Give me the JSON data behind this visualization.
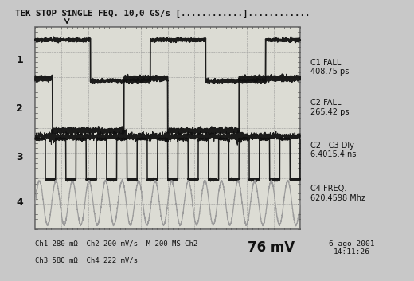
{
  "title": "TEK STOP SINGLE FEQ. 10,0 GS/s [............]............",
  "background_color": "#c8c8c8",
  "screen_bg": "#e0e0d8",
  "grid_color": "#999999",
  "ch1_color": "#111111",
  "ch2_color": "#111111",
  "ch3_color": "#111111",
  "ch4_color": "#999999",
  "right_labels": [
    "C1 FALL\n408.75 ps",
    "C2 FALL\n265.42 ps",
    "C2 - C3 Dly\n6.4015.4 ns",
    "C4 FREQ.\n620.4598 Mhz"
  ],
  "ch_labels": [
    "1",
    "2",
    "3",
    "4"
  ],
  "bottom_text1": "Ch1 280 mΩ  Ch2 200 mV/s  M 200 MS Ch2",
  "bottom_text2": "Ch3 580 mΩ  Ch4 222 mV/s",
  "bottom_right1": "76 mV",
  "bottom_right2": "6 ago 2001\n14:11:26",
  "n_points": 3000,
  "grid_rows": 8,
  "grid_cols": 10,
  "ch1_freq": 2.3,
  "ch1_duty": 0.48,
  "ch2_freq": 2.3,
  "ch2_duty": 0.38,
  "ch2_phase": 0.1,
  "ch3_freq": 13.0,
  "ch3_duty": 0.5,
  "ch4_freq": 16.0,
  "figwidth": 5.2,
  "figheight": 3.53,
  "dpi": 100
}
